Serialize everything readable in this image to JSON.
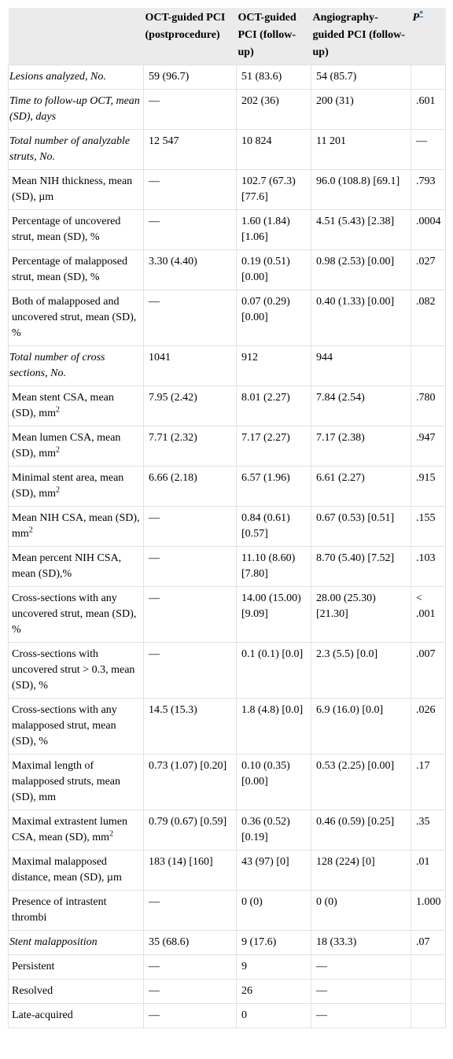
{
  "table": {
    "header": {
      "columns": [
        "OCT-guided PCI (postprocedure)",
        "OCT-guided PCI (follow-up)",
        "Angiography-guided PCI (follow-up)"
      ],
      "p_label": "P",
      "p_note": "*"
    },
    "rows": [
      {
        "label": "Lesions analyzed, No.",
        "italic": true,
        "cells": [
          "59 (96.7)",
          "51 (83.6)",
          "54 (85.7)",
          null
        ]
      },
      {
        "label": "Time to follow-up OCT, mean (SD), days",
        "italic": true,
        "cells": [
          "—",
          "202 (36)",
          "200 (31)",
          ".601"
        ]
      },
      {
        "label": "Total number of analyzable struts, No.",
        "italic": true,
        "cells": [
          "12 547",
          "10 824",
          "11 201",
          "—"
        ]
      },
      {
        "label": "Mean NIH thickness, mean (SD), µm",
        "cells": [
          "—",
          "102.7 (67.3) [77.6]",
          "96.0 (108.8) [69.1]",
          ".793"
        ]
      },
      {
        "label": "Percentage of uncovered strut, mean (SD), %",
        "cells": [
          "—",
          "1.60 (1.84) [1.06]",
          "4.51 (5.43) [2.38]",
          ".0004"
        ]
      },
      {
        "label": "Percentage of malapposed strut, mean (SD), %",
        "cells": [
          "3.30 (4.40)",
          "0.19 (0.51) [0.00]",
          "0.98 (2.53) [0.00]",
          ".027"
        ]
      },
      {
        "label": "Both of malapposed and uncovered strut, mean (SD), %",
        "cells": [
          "—",
          "0.07 (0.29) [0.00]",
          "0.40 (1.33) [0.00]",
          ".082"
        ]
      },
      {
        "label": "Total number of cross sections, No.",
        "italic": true,
        "cells": [
          "1041",
          "912",
          "944",
          null
        ]
      },
      {
        "label": "Mean stent CSA, mean (SD), mm",
        "sup": "2",
        "cells": [
          "7.95 (2.42)",
          "8.01 (2.27)",
          "7.84 (2.54)",
          ".780"
        ]
      },
      {
        "label": "Mean lumen CSA, mean (SD), mm",
        "sup": "2",
        "cells": [
          "7.71 (2.32)",
          "7.17 (2.27)",
          "7.17 (2.38)",
          ".947"
        ]
      },
      {
        "label": "Minimal stent area, mean (SD), mm",
        "sup": "2",
        "cells": [
          "6.66 (2.18)",
          "6.57 (1.96)",
          "6.61 (2.27)",
          ".915"
        ]
      },
      {
        "label": "Mean NIH CSA, mean (SD), mm",
        "sup": "2",
        "cells": [
          "—",
          "0.84 (0.61) [0.57]",
          "0.67 (0.53) [0.51]",
          ".155"
        ]
      },
      {
        "label": "Mean percent NIH CSA, mean (SD),%",
        "cells": [
          "—",
          "11.10 (8.60) [7.80]",
          "8.70 (5.40) [7.52]",
          ".103"
        ]
      },
      {
        "label": "Cross-sections with any uncovered strut, mean (SD), %",
        "cells": [
          "—",
          "14.00 (15.00) [9.09]",
          "28.00 (25.30) [21.30]",
          "< .001"
        ]
      },
      {
        "label": "Cross-sections with uncovered strut > 0.3, mean (SD), %",
        "cells": [
          "—",
          "0.1 (0.1) [0.0]",
          "2.3 (5.5) [0.0]",
          ".007"
        ]
      },
      {
        "label": "Cross-sections with any malapposed strut, mean (SD), %",
        "cells": [
          "14.5 (15.3)",
          "1.8 (4.8) [0.0]",
          "6.9 (16.0) [0.0]",
          ".026"
        ]
      },
      {
        "label": "Maximal length of malapposed struts, mean (SD), mm",
        "cells": [
          "0.73 (1.07) [0.20]",
          "0.10 (0.35) [0.00]",
          "0.53 (2.25) [0.00]",
          ".17"
        ]
      },
      {
        "label": "Maximal extrastent lumen CSA, mean (SD), mm",
        "sup": "2",
        "cells": [
          "0.79 (0.67) [0.59]",
          "0.36 (0.52) [0.19]",
          "0.46 (0.59) [0.25]",
          ".35"
        ]
      },
      {
        "label": "Maximal malapposed distance, mean (SD), µm",
        "cells": [
          "183 (14) [160]",
          "43 (97) [0]",
          "128 (224) [0]",
          ".01"
        ]
      },
      {
        "label": "Presence of intrastent thrombi",
        "cells": [
          "—",
          "0 (0)",
          "0 (0)",
          "1.000"
        ]
      },
      {
        "label": "Stent malapposition",
        "italic": true,
        "cells": [
          "35 (68.6)",
          "9 (17.6)",
          "18 (33.3)",
          ".07"
        ]
      },
      {
        "label": "Persistent",
        "cells": [
          "—",
          "9",
          "—",
          null
        ]
      },
      {
        "label": "Resolved",
        "cells": [
          "—",
          "26",
          "—",
          null
        ]
      },
      {
        "label": "Late-acquired",
        "cells": [
          "—",
          "0",
          "—",
          null
        ]
      }
    ]
  }
}
